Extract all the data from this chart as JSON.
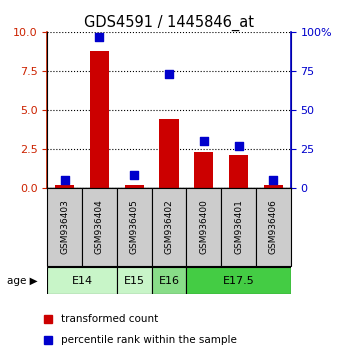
{
  "title": "GDS4591 / 1445846_at",
  "samples": [
    "GSM936403",
    "GSM936404",
    "GSM936405",
    "GSM936402",
    "GSM936400",
    "GSM936401",
    "GSM936406"
  ],
  "transformed_count": [
    0.15,
    8.8,
    0.2,
    4.4,
    2.3,
    2.1,
    0.15
  ],
  "percentile_rank": [
    5,
    97,
    8,
    73,
    30,
    27,
    5
  ],
  "left_yticks": [
    0,
    2.5,
    5,
    7.5,
    10
  ],
  "right_yticks": [
    0,
    25,
    50,
    75,
    100
  ],
  "ylim_left": [
    0,
    10
  ],
  "ylim_right": [
    0,
    100
  ],
  "bar_color": "#cc0000",
  "dot_color": "#0000cc",
  "age_groups": [
    {
      "label": "E14",
      "start": 0,
      "end": 2,
      "color": "#c8f5c8"
    },
    {
      "label": "E15",
      "start": 2,
      "end": 3,
      "color": "#c8f5c8"
    },
    {
      "label": "E16",
      "start": 3,
      "end": 4,
      "color": "#88dd88"
    },
    {
      "label": "E17.5",
      "start": 4,
      "end": 7,
      "color": "#44cc44"
    }
  ],
  "legend_red": "transformed count",
  "legend_blue": "percentile rank within the sample",
  "dot_size": 30,
  "bar_width": 0.55,
  "grid_color": "black",
  "grid_linestyle": "dotted",
  "grid_linewidth": 0.8,
  "tick_color_left": "#cc2200",
  "tick_color_right": "#0000cc",
  "sample_box_color": "#cccccc",
  "xlabel_fontsize": 6.5,
  "title_fontsize": 10.5
}
